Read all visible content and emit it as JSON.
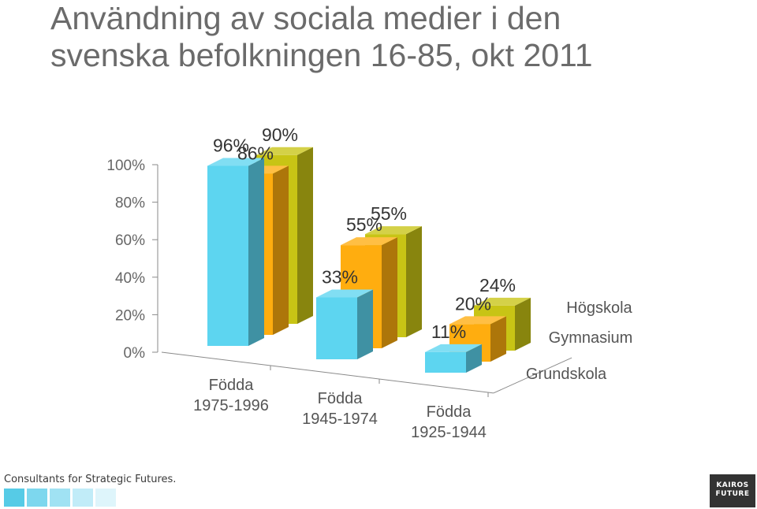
{
  "title_lines": [
    "Användning av sociala medier i den",
    "svenska befolkningen 16-85, okt 2011"
  ],
  "chart_data": {
    "type": "bar",
    "subtype": "3d-grouped",
    "title": "Användning av sociala medier i den svenska befolkningen 16-85, okt 2011",
    "categories": [
      [
        "Födda",
        "1975-1996"
      ],
      [
        "Födda",
        "1945-1974"
      ],
      [
        "Födda",
        "1925-1944"
      ]
    ],
    "series": [
      {
        "name": "Grundskola",
        "values": [
          96,
          33,
          11
        ],
        "labels": [
          "96%",
          "33%",
          "11%"
        ],
        "color": "#5dd5f0"
      },
      {
        "name": "Gymnasium",
        "values": [
          86,
          55,
          20
        ],
        "labels": [
          "86%",
          "55%",
          "20%"
        ],
        "color": "#ffad0f"
      },
      {
        "name": "Högskola",
        "values": [
          90,
          55,
          24
        ],
        "labels": [
          "90%",
          "55%",
          "24%"
        ],
        "color": "#c8c415"
      }
    ],
    "yticks": [
      "0%",
      "20%",
      "40%",
      "60%",
      "80%",
      "100%"
    ],
    "ylim": [
      0,
      100
    ],
    "grid": false,
    "legend": "depth-axis-right"
  },
  "footer": {
    "tagline": "Consultants for Strategic Futures.",
    "swatch_colors": [
      "#56cbe6",
      "#7dd7ee",
      "#a0e2f3",
      "#c1ecf8",
      "#def5fb"
    ],
    "logo_lines": [
      "KAIROS",
      "FUTURE"
    ]
  }
}
